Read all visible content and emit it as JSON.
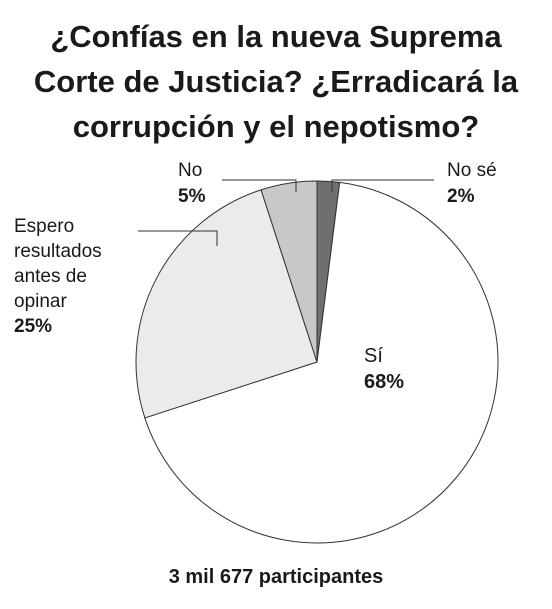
{
  "title_lines": [
    "¿Confías en la nueva Suprema",
    "Corte de Justicia? ¿Erradicará la",
    "corrupción y el nepotismo?"
  ],
  "footer": "3 mil 677 participantes",
  "chart_data": {
    "type": "pie",
    "title": "¿Confías en la nueva Suprema Corte de Justicia? ¿Erradicará la corrupción y el nepotismo?",
    "start": "top",
    "direction": "clockwise",
    "slices": [
      {
        "label": "No sé",
        "value_label": "2%",
        "value": 2,
        "color": "#6f6f6f"
      },
      {
        "label": "Sí",
        "value_label": "68%",
        "value": 68,
        "color": "#ffffff"
      },
      {
        "label": "Espero resultados antes de opinar",
        "label_lines": [
          "Espero",
          "resultados",
          "antes de",
          "opinar"
        ],
        "value_label": "25%",
        "value": 25,
        "color": "#ebebeb"
      },
      {
        "label": "No",
        "value_label": "5%",
        "value": 5,
        "color": "#c8c8c8"
      }
    ]
  }
}
